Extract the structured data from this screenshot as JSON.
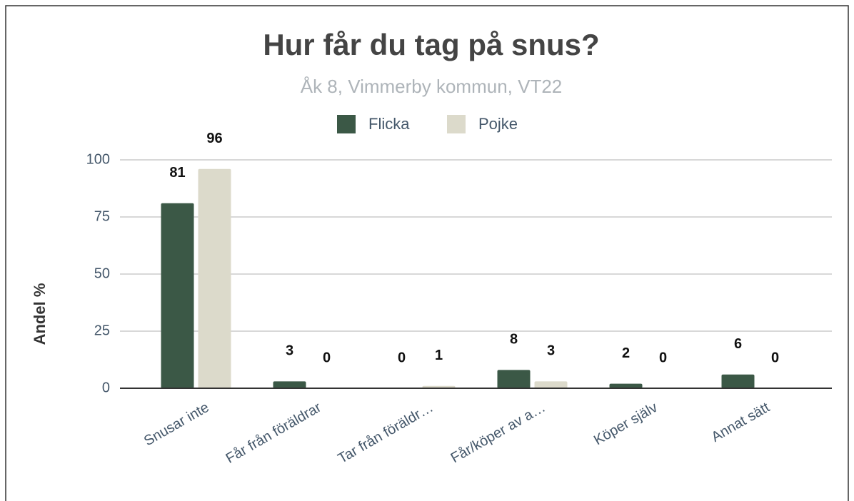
{
  "chart_data": {
    "type": "bar",
    "title": "Hur får du tag på snus?",
    "subtitle": "Åk 8, Vimmerby kommun, VT22",
    "y_label": "Andel %",
    "categories": [
      "Snusar inte",
      "Får från föräldrar",
      "Tar från föräldr…",
      "Får/köper av a…",
      "Köper själv",
      "Annat sätt"
    ],
    "series": [
      {
        "name": "Flicka",
        "color": "#3b5846",
        "values": [
          81,
          3,
          0,
          8,
          2,
          6
        ]
      },
      {
        "name": "Pojke",
        "color": "#dcdacb",
        "values": [
          96,
          0,
          1,
          3,
          0,
          0
        ]
      }
    ],
    "ylim": [
      0,
      100
    ],
    "yticks": [
      0,
      25,
      50,
      75,
      100
    ],
    "grid": true,
    "legend": "top"
  }
}
